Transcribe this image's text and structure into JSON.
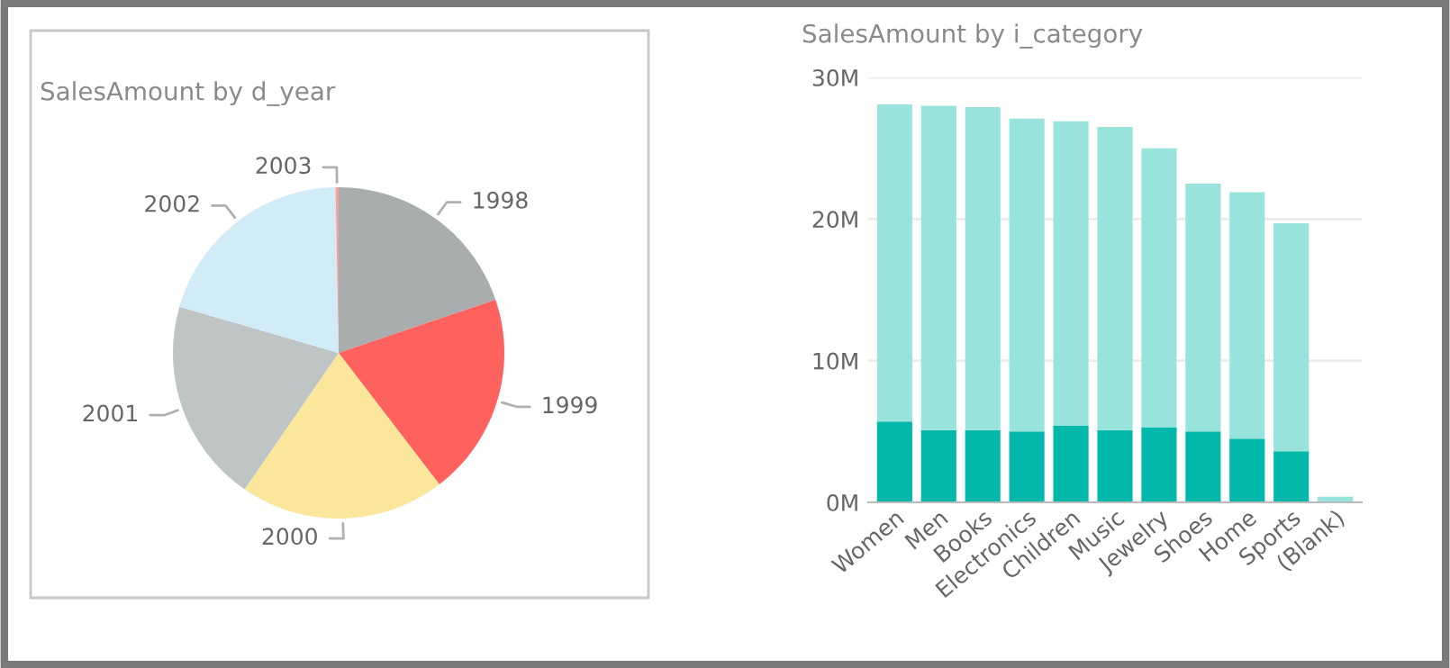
{
  "chart_data": [
    {
      "type": "pie",
      "title": "SalesAmount by d_year",
      "categories": [
        "1998",
        "1999",
        "2000",
        "2001",
        "2002",
        "2003"
      ],
      "values": [
        19.8,
        19.8,
        20.0,
        19.9,
        20.2,
        0.3
      ],
      "colors": [
        "#a9adae",
        "#fd625e",
        "#fae79b",
        "#bfc4c5",
        "#d1ecf7",
        "#f5a0a0"
      ]
    },
    {
      "type": "bar",
      "title": "SalesAmount by i_category",
      "stacked": true,
      "grid": "y",
      "categories": [
        "Women",
        "Men",
        "Books",
        "Electronics",
        "Children",
        "Music",
        "Jewelry",
        "Shoes",
        "Home",
        "Sports",
        "(Blank)"
      ],
      "series": [
        {
          "color": "#01b8aa",
          "values": [
            5.7,
            5.1,
            5.1,
            5.0,
            5.4,
            5.1,
            5.3,
            5.0,
            4.5,
            3.6,
            null
          ]
        },
        {
          "color": "#99e3dd",
          "values": [
            22.4,
            22.9,
            22.8,
            22.1,
            21.5,
            21.4,
            19.7,
            17.5,
            17.4,
            16.1,
            0.4
          ]
        }
      ],
      "ylim": [
        0,
        30
      ],
      "yticks": [
        {
          "value": 0,
          "label": "0M"
        },
        {
          "value": 10,
          "label": "10M"
        },
        {
          "value": 20,
          "label": "20M"
        },
        {
          "value": 30,
          "label": "30M"
        }
      ]
    }
  ]
}
